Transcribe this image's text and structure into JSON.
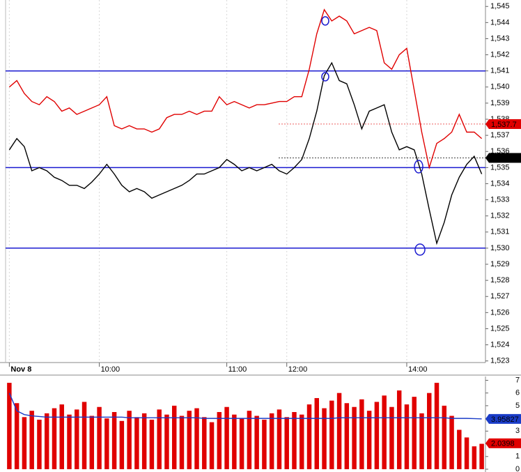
{
  "chart_data": [
    {
      "type": "line",
      "categories": [
        "Nov 8",
        null,
        null,
        null,
        null,
        null,
        null,
        null,
        null,
        null,
        null,
        null,
        "10:00",
        null,
        null,
        null,
        null,
        null,
        null,
        null,
        null,
        null,
        null,
        null,
        null,
        null,
        null,
        null,
        null,
        "11:00",
        null,
        null,
        null,
        null,
        null,
        null,
        null,
        "12:00",
        null,
        null,
        null,
        null,
        null,
        null,
        null,
        null,
        null,
        null,
        null,
        null,
        null,
        null,
        null,
        "14:00",
        null,
        null,
        null,
        null,
        null,
        null,
        null,
        null,
        null,
        null
      ],
      "series": [
        {
          "color": "#000000",
          "values": [
            1.5361,
            1.5368,
            1.5363,
            1.5348,
            1.535,
            1.5348,
            1.5344,
            1.5342,
            1.5339,
            1.5339,
            1.5337,
            1.5341,
            1.5346,
            1.5352,
            1.5346,
            1.5339,
            1.5335,
            1.5337,
            1.5335,
            1.5331,
            1.5333,
            1.5335,
            1.5337,
            1.5339,
            1.5342,
            1.5346,
            1.5346,
            1.5348,
            1.535,
            1.5355,
            1.5352,
            1.5348,
            1.535,
            1.5348,
            1.535,
            1.5352,
            1.5348,
            1.5346,
            1.535,
            1.5355,
            1.5368,
            1.5385,
            1.5407,
            1.5415,
            1.5404,
            1.5402,
            1.5389,
            1.5374,
            1.5385,
            1.5387,
            1.5389,
            1.5372,
            1.5361,
            1.5363,
            1.5361,
            1.5346,
            1.5324,
            1.5303,
            1.5316,
            1.5333,
            1.5344,
            1.5352,
            1.5357,
            1.5346
          ]
        },
        {
          "color": "#e00000",
          "values": [
            1.54,
            1.5404,
            1.5396,
            1.5391,
            1.5389,
            1.5394,
            1.5391,
            1.5385,
            1.5387,
            1.5383,
            1.5385,
            1.5387,
            1.5389,
            1.5394,
            1.5376,
            1.5374,
            1.5376,
            1.5374,
            1.5374,
            1.5372,
            1.5374,
            1.5381,
            1.5383,
            1.5383,
            1.5385,
            1.5383,
            1.5385,
            1.5385,
            1.5394,
            1.5389,
            1.5391,
            1.5389,
            1.5387,
            1.5389,
            1.5389,
            1.539,
            1.5391,
            1.5391,
            1.5394,
            1.5394,
            1.5411,
            1.5433,
            1.5448,
            1.5441,
            1.5444,
            1.5441,
            1.5433,
            1.5435,
            1.5437,
            1.5435,
            1.5415,
            1.5411,
            1.542,
            1.5424,
            1.5398,
            1.5372,
            1.535,
            1.5365,
            1.5368,
            1.5372,
            1.5383,
            1.5372,
            1.5372,
            1.5368
          ]
        }
      ],
      "hlines": [
        1.541,
        1.535,
        1.53
      ],
      "hline_color": "#1a1ad0",
      "price_tags": [
        {
          "value": 1.5377,
          "label": "1,537.7",
          "color": "#e00000"
        },
        {
          "value": 1.5356,
          "label": "1,535.6",
          "color": "#000000"
        }
      ],
      "ylim": [
        1.5229,
        1.5454
      ],
      "yticks": [
        {
          "value": 1.523,
          "label": "1,523"
        },
        {
          "value": 1.524,
          "label": "1,524"
        },
        {
          "value": 1.525,
          "label": "1,525"
        },
        {
          "value": 1.526,
          "label": "1,526"
        },
        {
          "value": 1.527,
          "label": "1,527"
        },
        {
          "value": 1.528,
          "label": "1,528"
        },
        {
          "value": 1.529,
          "label": "1,529"
        },
        {
          "value": 1.53,
          "label": "1,530"
        },
        {
          "value": 1.531,
          "label": "1,531"
        },
        {
          "value": 1.532,
          "label": "1,532"
        },
        {
          "value": 1.533,
          "label": "1,533"
        },
        {
          "value": 1.534,
          "label": "1,534"
        },
        {
          "value": 1.535,
          "label": "1,535"
        },
        {
          "value": 1.536,
          "label": "1,536"
        },
        {
          "value": 1.537,
          "label": "1,537"
        },
        {
          "value": 1.538,
          "label": "1,538"
        },
        {
          "value": 1.539,
          "label": "1,539"
        },
        {
          "value": 1.54,
          "label": "1,540"
        },
        {
          "value": 1.541,
          "label": "1,541"
        },
        {
          "value": 1.542,
          "label": "1,542"
        },
        {
          "value": 1.543,
          "label": "1,543"
        },
        {
          "value": 1.544,
          "label": "1,544"
        },
        {
          "value": 1.545,
          "label": "1,545"
        }
      ]
    },
    {
      "type": "bar",
      "series": [
        {
          "type": "bar",
          "color": "#e00000",
          "values": [
            6.8,
            5.2,
            4.1,
            4.6,
            3.9,
            4.4,
            4.8,
            5.1,
            4.3,
            4.7,
            5.3,
            4.2,
            4.9,
            4.0,
            4.5,
            3.8,
            4.6,
            4.1,
            4.4,
            3.9,
            4.7,
            4.3,
            5.0,
            4.2,
            4.6,
            4.8,
            4.1,
            3.7,
            4.5,
            4.9,
            4.3,
            4.0,
            4.6,
            4.2,
            3.9,
            4.4,
            4.7,
            4.1,
            4.5,
            4.3,
            5.1,
            5.6,
            4.8,
            5.4,
            6.0,
            5.2,
            4.9,
            5.5,
            4.6,
            5.3,
            5.8,
            4.9,
            6.2,
            5.1,
            5.7,
            4.4,
            6.0,
            6.8,
            5.0,
            4.2,
            3.1,
            2.5,
            1.8,
            2.0
          ]
        },
        {
          "type": "line",
          "color": "#1a3cc8",
          "values": [
            6.0,
            4.6,
            4.3,
            4.2,
            4.15,
            4.1,
            4.1,
            4.1,
            4.1,
            4.1,
            4.1,
            4.1,
            4.1,
            4.1,
            4.1,
            4.1,
            4.05,
            4.05,
            4.05,
            4.05,
            4.05,
            4.05,
            4.05,
            4.05,
            4.05,
            4.05,
            4.0,
            4.0,
            4.0,
            4.0,
            4.0,
            4.0,
            4.0,
            4.0,
            4.0,
            4.0,
            4.0,
            4.0,
            4.0,
            4.0,
            4.0,
            4.0,
            4.0,
            4.0,
            4.05,
            4.05,
            4.05,
            4.05,
            4.05,
            4.05,
            4.05,
            4.05,
            4.05,
            4.05,
            4.05,
            4.05,
            4.05,
            4.05,
            4.05,
            4.0,
            4.0,
            4.0,
            3.98,
            3.96
          ]
        }
      ],
      "value_tags": [
        {
          "value": 3.95827,
          "label": "3.95827",
          "color": "#1a3cc8"
        },
        {
          "value": 2.0398,
          "label": "2.0398",
          "color": "#e00000"
        }
      ],
      "ylim": [
        0,
        7.3
      ],
      "yticks": [
        0,
        1,
        2,
        3,
        4,
        5,
        6,
        7
      ]
    }
  ]
}
